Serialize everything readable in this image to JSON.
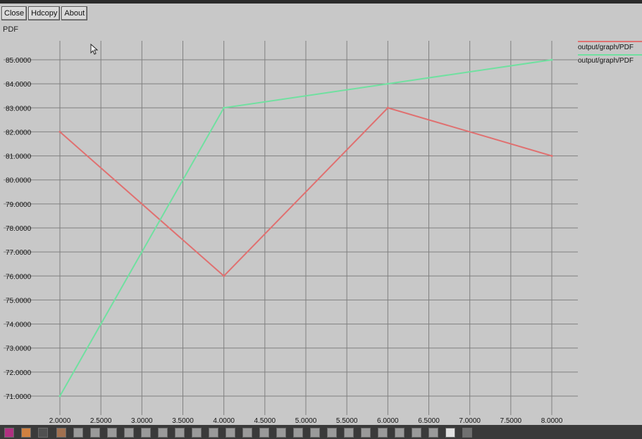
{
  "toolbar": {
    "close_label": "Close",
    "hdcopy_label": "Hdcopy",
    "about_label": "About"
  },
  "plot_title": "PDF",
  "colors": {
    "background": "#c8c8c8",
    "grid": "#808080",
    "series1": "#e07070",
    "series2": "#70e0a0",
    "text": "#111111"
  },
  "chart_data": {
    "type": "line",
    "title": "PDF",
    "xlabel": "",
    "ylabel": "",
    "xlim": [
      2.0,
      8.0
    ],
    "ylim": [
      71,
      85
    ],
    "grid": true,
    "legend_position": "top-right",
    "xticks": [
      "2.0000",
      "2.5000",
      "3.0000",
      "3.5000",
      "4.0000",
      "4.5000",
      "5.0000",
      "5.5000",
      "6.0000",
      "6.5000",
      "7.0000",
      "7.5000",
      "8.0000"
    ],
    "yticks": [
      "71.0000",
      "72.0000",
      "73.0000",
      "74.0000",
      "75.0000",
      "76.0000",
      "77.0000",
      "78.0000",
      "79.0000",
      "80.0000",
      "81.0000",
      "82.0000",
      "83.0000",
      "84.0000",
      "85.0000"
    ],
    "series": [
      {
        "name": "output/graph/PDF",
        "color": "#e07070",
        "x": [
          2,
          4,
          6,
          8
        ],
        "y": [
          82,
          76,
          83,
          81
        ]
      },
      {
        "name": "output/graph/PDF",
        "color": "#70e0a0",
        "x": [
          2,
          4,
          6,
          8
        ],
        "y": [
          71,
          83,
          84,
          85
        ]
      }
    ]
  }
}
